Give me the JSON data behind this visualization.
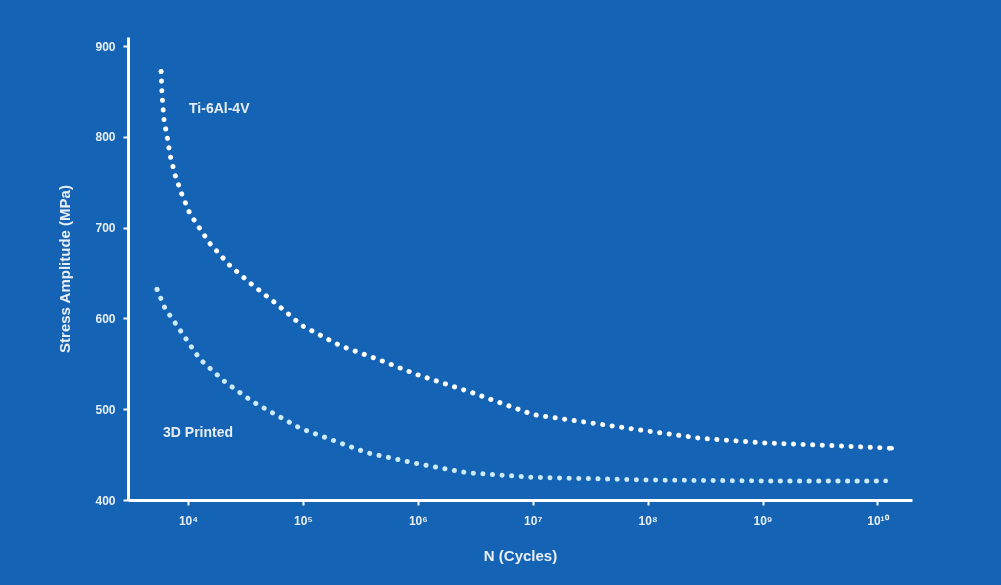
{
  "chart_data": {
    "type": "line",
    "xlabel": "N (Cycles)",
    "ylabel": "Stress Amplitude (MPa)",
    "log": "x",
    "xlim": [
      3000,
      20000000000
    ],
    "ylim": [
      400,
      910
    ],
    "xticks": [
      {
        "value": 10000,
        "label": "10⁴"
      },
      {
        "value": 100000,
        "label": "10⁵"
      },
      {
        "value": 1000000,
        "label": "10⁶"
      },
      {
        "value": 10000000,
        "label": "10⁷"
      },
      {
        "value": 100000000,
        "label": "10⁸"
      },
      {
        "value": 1000000000,
        "label": "10⁹"
      },
      {
        "value": 10000000000,
        "label": "10¹⁰"
      }
    ],
    "yticks": [
      400,
      500,
      600,
      700,
      800,
      900
    ],
    "legend": false,
    "marker": "none",
    "line_style": "dotted",
    "series": [
      {
        "name": "Ti-6Al-4V",
        "color": "#ffffff",
        "x": [
          5820,
          5940,
          6180,
          6560,
          6970,
          7710,
          8870,
          10400,
          15600,
          23200,
          34700,
          55000,
          98400,
          211000,
          470000,
          988000,
          2860000,
          10100000,
          31700000,
          99500000,
          288000000,
          1000000000,
          3910000000,
          13300000000
        ],
        "values": [
          872,
          845,
          818,
          801,
          780,
          758,
          736,
          715,
          682,
          658,
          639,
          619,
          592,
          570,
          554,
          538,
          519,
          494,
          485,
          476,
          468,
          463,
          460,
          457
        ]
      },
      {
        "name": "3D Printed",
        "color": "#cdeaf7",
        "x": [
          5370,
          6310,
          8020,
          10000,
          12700,
          21000,
          36800,
          94600,
          362000,
          988000,
          2690000,
          10100000,
          99500000,
          1000000000,
          11800000000
        ],
        "values": [
          632,
          611,
          592,
          574,
          555,
          530,
          508,
          479,
          452,
          440,
          430,
          425,
          422,
          421,
          421
        ]
      }
    ]
  }
}
